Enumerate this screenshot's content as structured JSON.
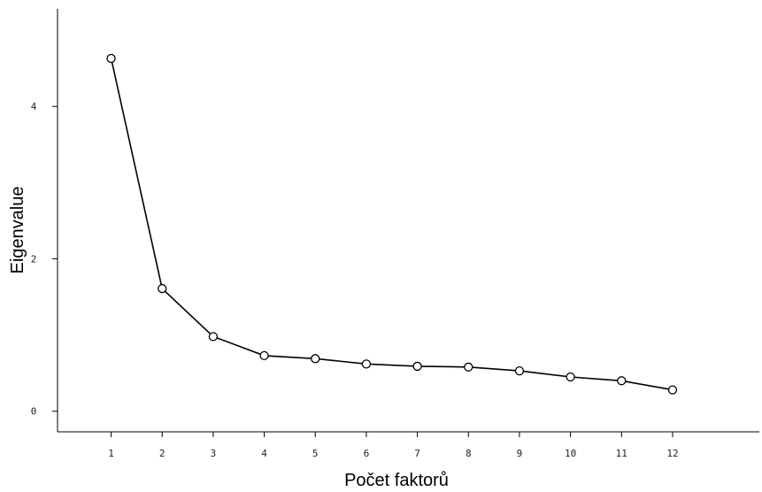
{
  "chart_data": {
    "type": "line",
    "title": "",
    "xlabel": "Počet faktorů",
    "ylabel": "Eigenvalue",
    "x": [
      1,
      2,
      3,
      4,
      5,
      6,
      7,
      8,
      9,
      10,
      11,
      12
    ],
    "x_tick_labels": [
      "1",
      "2",
      "3",
      "4",
      "5",
      "6",
      "7",
      "8",
      "9",
      "10",
      "11",
      "12"
    ],
    "y_tick_labels": [
      "0",
      "2",
      "4"
    ],
    "y_ticks": [
      0,
      2,
      4
    ],
    "xlim": [
      -0.05,
      13.7
    ],
    "ylim": [
      -0.27,
      5.28
    ],
    "grid": false,
    "marker": "open-circle",
    "line_color": "#000000",
    "series": [
      {
        "values": [
          4.63,
          1.61,
          0.98,
          0.73,
          0.69,
          0.62,
          0.59,
          0.58,
          0.53,
          0.45,
          0.4,
          0.28
        ]
      }
    ]
  }
}
